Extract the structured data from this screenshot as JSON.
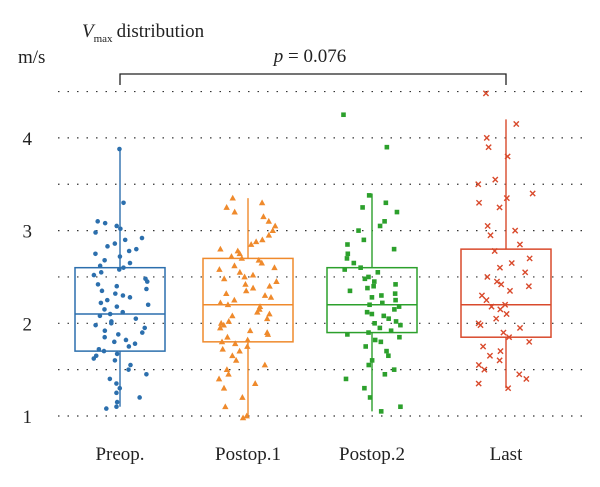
{
  "chart_data": {
    "type": "box",
    "title_symbol": "V",
    "title_subscript": "max",
    "title_rest": "distribution",
    "ylabel": "m/s",
    "ylim": [
      1,
      4.5
    ],
    "yticks": [
      1,
      2,
      3,
      4
    ],
    "grid": "dotted horizontal at 0.5 steps",
    "categories": [
      "Preop.",
      "Postop.1",
      "Postop.2",
      "Last"
    ],
    "annotation": {
      "from": "Preop.",
      "to": "Last",
      "p_label": "p",
      "p_text": " = 0.076"
    },
    "series": [
      {
        "category": "Preop.",
        "color": "#2c6fad",
        "marker": "circle",
        "whisker_low": 1.1,
        "q1": 1.7,
        "median": 2.1,
        "q3": 2.6,
        "whisker_high": 3.9,
        "points": [
          3.88,
          3.3,
          3.1,
          3.08,
          3.05,
          3.02,
          2.98,
          2.92,
          2.9,
          2.86,
          2.83,
          2.8,
          2.78,
          2.75,
          2.72,
          2.68,
          2.65,
          2.62,
          2.6,
          2.58,
          2.55,
          2.52,
          2.48,
          2.45,
          2.42,
          2.4,
          2.37,
          2.35,
          2.32,
          2.3,
          2.28,
          2.25,
          2.22,
          2.2,
          2.18,
          2.15,
          2.12,
          2.1,
          2.08,
          2.05,
          2.02,
          2.0,
          1.98,
          1.95,
          1.92,
          1.9,
          1.88,
          1.85,
          1.82,
          1.8,
          1.78,
          1.75,
          1.72,
          1.7,
          1.67,
          1.65,
          1.62,
          1.6,
          1.55,
          1.5,
          1.45,
          1.4,
          1.35,
          1.3,
          1.25,
          1.2,
          1.15,
          1.1,
          1.08
        ]
      },
      {
        "category": "Postop.1",
        "color": "#ef8a2c",
        "marker": "triangle",
        "whisker_low": 1.0,
        "q1": 1.8,
        "median": 2.2,
        "q3": 2.7,
        "whisker_high": 3.35,
        "points": [
          3.35,
          3.3,
          3.25,
          3.2,
          3.15,
          3.1,
          3.05,
          3.0,
          2.95,
          2.9,
          2.88,
          2.85,
          2.8,
          2.78,
          2.75,
          2.72,
          2.7,
          2.68,
          2.65,
          2.62,
          2.6,
          2.58,
          2.55,
          2.52,
          2.5,
          2.48,
          2.45,
          2.42,
          2.4,
          2.38,
          2.35,
          2.32,
          2.3,
          2.28,
          2.25,
          2.22,
          2.2,
          2.18,
          2.15,
          2.12,
          2.1,
          2.08,
          2.05,
          2.02,
          2.0,
          1.98,
          1.95,
          1.92,
          1.9,
          1.88,
          1.85,
          1.82,
          1.8,
          1.78,
          1.75,
          1.72,
          1.7,
          1.65,
          1.6,
          1.55,
          1.5,
          1.45,
          1.4,
          1.35,
          1.3,
          1.2,
          1.1,
          1.0,
          0.98
        ]
      },
      {
        "category": "Postop.2",
        "color": "#2ca02c",
        "marker": "square",
        "whisker_low": 1.05,
        "q1": 1.9,
        "median": 2.2,
        "q3": 2.6,
        "whisker_high": 3.4,
        "points": [
          4.25,
          3.9,
          3.38,
          3.3,
          3.25,
          3.2,
          3.1,
          3.05,
          3.0,
          2.9,
          2.85,
          2.8,
          2.75,
          2.7,
          2.65,
          2.6,
          2.58,
          2.55,
          2.5,
          2.48,
          2.45,
          2.42,
          2.4,
          2.38,
          2.35,
          2.32,
          2.3,
          2.28,
          2.25,
          2.22,
          2.2,
          2.18,
          2.15,
          2.12,
          2.1,
          2.08,
          2.05,
          2.02,
          2.0,
          1.98,
          1.95,
          1.92,
          1.9,
          1.88,
          1.85,
          1.82,
          1.8,
          1.75,
          1.7,
          1.65,
          1.6,
          1.55,
          1.5,
          1.45,
          1.4,
          1.3,
          1.2,
          1.1,
          1.05
        ]
      },
      {
        "category": "Last",
        "color": "#d94a2c",
        "marker": "x",
        "whisker_low": 1.3,
        "q1": 1.85,
        "median": 2.2,
        "q3": 2.8,
        "whisker_high": 4.2,
        "points": [
          4.48,
          4.15,
          4.0,
          3.9,
          3.8,
          3.55,
          3.5,
          3.4,
          3.35,
          3.3,
          3.25,
          3.05,
          3.0,
          2.95,
          2.85,
          2.78,
          2.7,
          2.65,
          2.6,
          2.55,
          2.5,
          2.45,
          2.42,
          2.4,
          2.35,
          2.3,
          2.25,
          2.2,
          2.18,
          2.15,
          2.1,
          2.05,
          2.0,
          1.98,
          1.95,
          1.9,
          1.85,
          1.8,
          1.75,
          1.7,
          1.65,
          1.6,
          1.55,
          1.5,
          1.45,
          1.4,
          1.35,
          1.3
        ]
      }
    ]
  }
}
